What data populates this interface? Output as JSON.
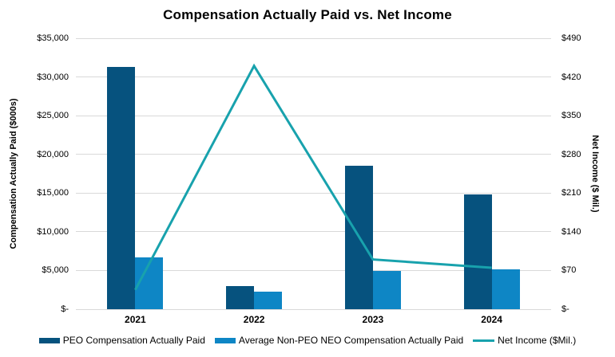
{
  "title": "Compensation Actually Paid vs. Net Income",
  "colors": {
    "peo_bar": "#06527E",
    "non_peo_bar": "#0E86C5",
    "net_income_line": "#18A2AD",
    "gridline": "#d9d9d9",
    "text": "#000000",
    "background": "#ffffff"
  },
  "chart_data": {
    "type": "bar",
    "subtype": "grouped bars with overlaid line on secondary axis",
    "categories": [
      "2021",
      "2022",
      "2023",
      "2024"
    ],
    "series": [
      {
        "name": "PEO Compensation Actually Paid",
        "type": "bar",
        "axis": "left",
        "color": "#06527E",
        "values": [
          31300,
          3000,
          18500,
          14800
        ]
      },
      {
        "name": "Average Non-PEO NEO Compensation Actually Paid",
        "type": "bar",
        "axis": "left",
        "color": "#0E86C5",
        "values": [
          6700,
          2300,
          4900,
          5100
        ]
      },
      {
        "name": "Net Income ($Mil.)",
        "type": "line",
        "axis": "right",
        "color": "#18A2AD",
        "values": [
          35,
          440,
          90,
          75
        ]
      }
    ],
    "left_axis": {
      "label": "Compensation Actually Paid ($000s)",
      "ticks": [
        "$35,000",
        "$30,000",
        "$25,000",
        "$20,000",
        "$15,000",
        "$10,000",
        "$5,000",
        "$-"
      ],
      "min": 0,
      "max": 35000,
      "step": 5000
    },
    "right_axis": {
      "label": "Net Income ($ Mil.)",
      "ticks": [
        "$490",
        "$420",
        "$350",
        "$280",
        "$210",
        "$140",
        "$70",
        "$-"
      ],
      "min": 0,
      "max": 490,
      "step": 70
    },
    "grid": true,
    "legend_position": "bottom"
  }
}
